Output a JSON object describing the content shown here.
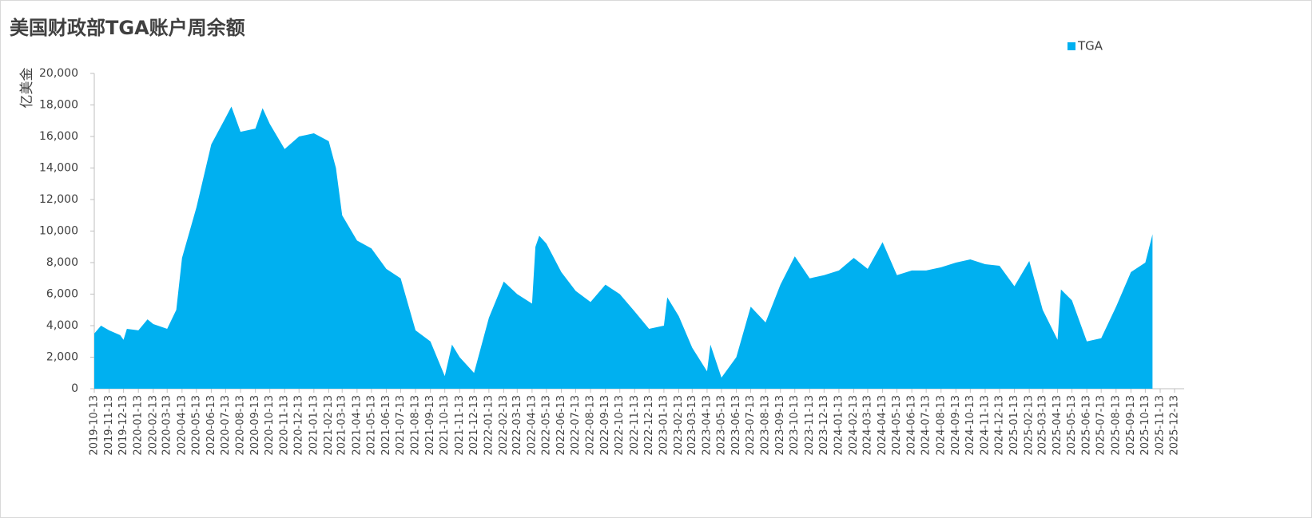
{
  "chart_data": {
    "type": "area",
    "title": "美国财政部TGA账户周余额",
    "y_label": "亿美金",
    "legend_position": "top-right",
    "x": [
      "2019-10-13",
      "2019-10-27",
      "2019-11-13",
      "2019-12-06",
      "2019-12-13",
      "2019-12-20",
      "2020-01-13",
      "2020-02-01",
      "2020-02-13",
      "2020-03-13",
      "2020-04-01",
      "2020-04-13",
      "2020-05-13",
      "2020-06-13",
      "2020-07-13",
      "2020-07-25",
      "2020-08-13",
      "2020-09-13",
      "2020-09-28",
      "2020-10-13",
      "2020-11-13",
      "2020-12-13",
      "2021-01-13",
      "2021-02-13",
      "2021-02-28",
      "2021-03-13",
      "2021-04-13",
      "2021-05-13",
      "2021-06-13",
      "2021-07-13",
      "2021-08-13",
      "2021-09-13",
      "2021-10-13",
      "2021-10-28",
      "2021-11-13",
      "2021-12-13",
      "2022-01-13",
      "2022-02-13",
      "2022-03-13",
      "2022-04-13",
      "2022-04-20",
      "2022-04-28",
      "2022-05-13",
      "2022-06-13",
      "2022-07-13",
      "2022-08-13",
      "2022-09-13",
      "2022-10-13",
      "2022-11-13",
      "2022-12-13",
      "2023-01-13",
      "2023-01-20",
      "2023-02-13",
      "2023-03-13",
      "2023-04-13",
      "2023-04-20",
      "2023-05-13",
      "2023-06-13",
      "2023-07-13",
      "2023-08-13",
      "2023-09-13",
      "2023-10-13",
      "2023-11-13",
      "2023-12-13",
      "2024-01-13",
      "2024-02-13",
      "2024-03-13",
      "2024-04-13",
      "2024-05-13",
      "2024-06-13",
      "2024-07-13",
      "2024-08-13",
      "2024-09-13",
      "2024-10-13",
      "2024-11-13",
      "2024-12-13",
      "2025-01-13",
      "2025-02-13",
      "2025-03-13",
      "2025-04-13",
      "2025-04-20",
      "2025-05-13",
      "2025-06-13",
      "2025-07-13",
      "2025-08-13",
      "2025-09-13",
      "2025-10-13",
      "2025-10-28"
    ],
    "series": [
      {
        "name": "TGA",
        "color": "#00b0f0",
        "values": [
          3500,
          4000,
          3700,
          3400,
          3100,
          3800,
          3700,
          4400,
          4100,
          3800,
          5000,
          8300,
          11500,
          15500,
          17200,
          17900,
          16300,
          16500,
          17800,
          16800,
          15200,
          16000,
          16200,
          15700,
          14000,
          11000,
          9400,
          8900,
          7600,
          7000,
          3700,
          3000,
          800,
          2800,
          2000,
          1000,
          4500,
          6800,
          6000,
          5400,
          9000,
          9700,
          9200,
          7400,
          6200,
          5500,
          6600,
          6000,
          4900,
          3800,
          4000,
          5800,
          4600,
          2600,
          1100,
          2800,
          700,
          2000,
          5200,
          4200,
          6600,
          8400,
          7000,
          7200,
          7500,
          8300,
          7600,
          9300,
          7200,
          7500,
          7500,
          7700,
          8000,
          8200,
          7900,
          7800,
          6500,
          8100,
          5000,
          3100,
          6300,
          5600,
          3000,
          3200,
          5200,
          7400,
          8000,
          9800
        ]
      }
    ],
    "xlim": [
      "2019-10-13",
      "2025-12-13"
    ],
    "xticks": [
      "2019-10-13",
      "2019-11-13",
      "2019-12-13",
      "2020-01-13",
      "2020-02-13",
      "2020-03-13",
      "2020-04-13",
      "2020-05-13",
      "2020-06-13",
      "2020-07-13",
      "2020-08-13",
      "2020-09-13",
      "2020-10-13",
      "2020-11-13",
      "2020-12-13",
      "2021-01-13",
      "2021-02-13",
      "2021-03-13",
      "2021-04-13",
      "2021-05-13",
      "2021-06-13",
      "2021-07-13",
      "2021-08-13",
      "2021-09-13",
      "2021-10-13",
      "2021-11-13",
      "2021-12-13",
      "2022-01-13",
      "2022-02-13",
      "2022-03-13",
      "2022-04-13",
      "2022-05-13",
      "2022-06-13",
      "2022-07-13",
      "2022-08-13",
      "2022-09-13",
      "2022-10-13",
      "2022-11-13",
      "2022-12-13",
      "2023-01-13",
      "2023-02-13",
      "2023-03-13",
      "2023-04-13",
      "2023-05-13",
      "2023-06-13",
      "2023-07-13",
      "2023-08-13",
      "2023-09-13",
      "2023-10-13",
      "2023-11-13",
      "2023-12-13",
      "2024-01-13",
      "2024-02-13",
      "2024-03-13",
      "2024-04-13",
      "2024-05-13",
      "2024-06-13",
      "2024-07-13",
      "2024-08-13",
      "2024-09-13",
      "2024-10-13",
      "2024-11-13",
      "2024-12-13",
      "2025-01-13",
      "2025-02-13",
      "2025-03-13",
      "2025-04-13",
      "2025-05-13",
      "2025-06-13",
      "2025-07-13",
      "2025-08-13",
      "2025-09-13",
      "2025-10-13",
      "2025-11-13",
      "2025-12-13"
    ],
    "ylim": [
      0,
      20000
    ],
    "yticks": [
      0,
      {
        "value": 2000,
        "label": "2,000"
      },
      {
        "value": 4000,
        "label": "4,000"
      },
      {
        "value": 6000,
        "label": "6,000"
      },
      {
        "value": 8000,
        "label": "8,000"
      },
      {
        "value": 10000,
        "label": "10,000"
      },
      {
        "value": 12000,
        "label": "12,000"
      },
      {
        "value": 14000,
        "label": "14,000"
      },
      {
        "value": 16000,
        "label": "16,000"
      },
      {
        "value": 18000,
        "label": "18,000"
      },
      {
        "value": 20000,
        "label": "20,000"
      }
    ],
    "grid": false
  }
}
